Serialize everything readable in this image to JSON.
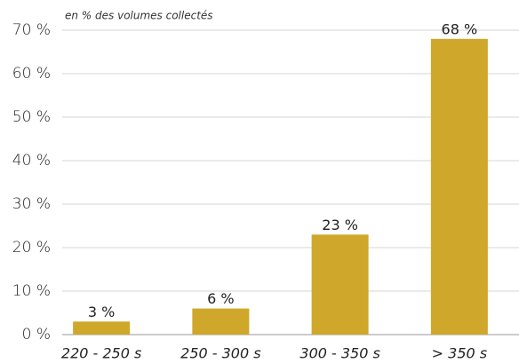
{
  "chart_data": {
    "type": "bar",
    "subtitle": "en % des volumes collectés",
    "categories": [
      "220 - 250 s",
      "250 - 300 s",
      "300 - 350 s",
      "> 350 s"
    ],
    "values": [
      3,
      6,
      23,
      68
    ],
    "value_labels": [
      "3 %",
      "6 %",
      "23 %",
      "68 %"
    ],
    "color": "#cfa82b",
    "ylim": [
      0,
      70
    ],
    "yticks": [
      {
        "value": 0,
        "label": "0 %"
      },
      {
        "value": 10,
        "label": "10 %"
      },
      {
        "value": 20,
        "label": "20 %"
      },
      {
        "value": 30,
        "label": "30 %"
      },
      {
        "value": 40,
        "label": "40 %"
      },
      {
        "value": 50,
        "label": "50 %"
      },
      {
        "value": 60,
        "label": "60 %"
      },
      {
        "value": 70,
        "label": "70 %"
      }
    ],
    "grid": true
  }
}
